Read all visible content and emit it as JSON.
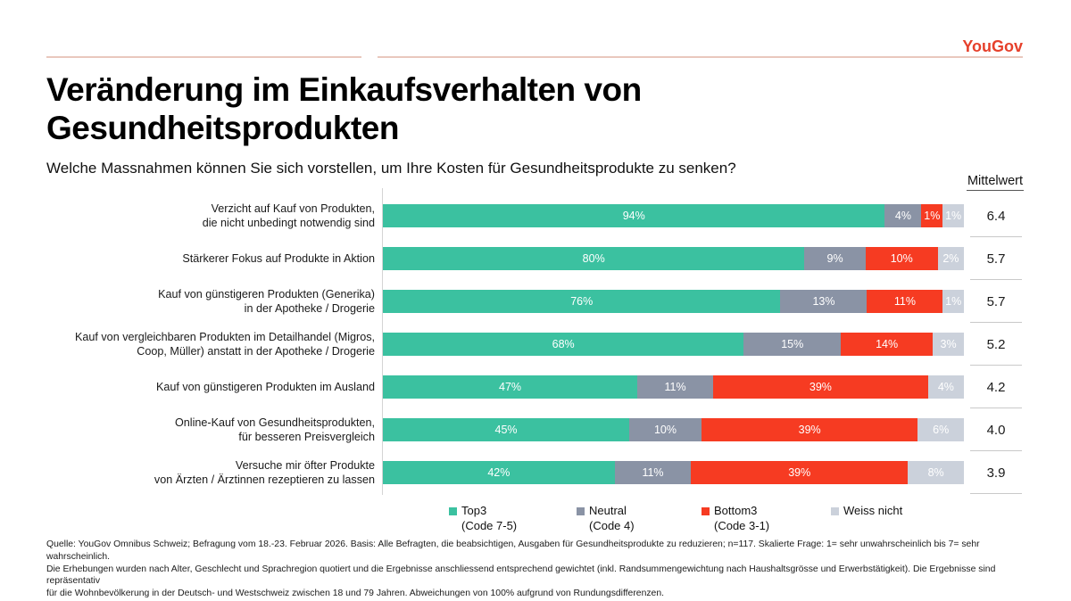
{
  "page": {
    "logo_text": "YouGov",
    "logo_color": "#E6402B",
    "accent_line_color": "#E9C8BD",
    "title": "Veränderung im Einkaufsverhalten von Gesundheitsprodukten",
    "subtitle": "Welche Massnahmen können Sie sich vorstellen, um Ihre Kosten für Gesundheitsprodukte zu senken?"
  },
  "chart_data": {
    "type": "bar",
    "orientation": "horizontal",
    "stacked": true,
    "value_suffix": "%",
    "x_range": [
      0,
      100
    ],
    "mean_header": "Mittelwert",
    "categories": [
      "Verzicht auf Kauf von Produkten,\ndie nicht unbedingt notwendig sind",
      "Stärkerer Fokus auf Produkte in Aktion",
      "Kauf von günstigeren Produkten (Generika)\nin der Apotheke / Drogerie",
      "Kauf von vergleichbaren Produkten im Detailhandel (Migros,\nCoop, Müller) anstatt in der Apotheke / Drogerie",
      "Kauf von günstigeren Produkten im Ausland",
      "Online-Kauf von Gesundheitsprodukten,\nfür besseren Preisvergleich",
      "Versuche mir öfter Produkte\nvon Ärzten / Ärztinnen rezeptieren zu lassen"
    ],
    "series": [
      {
        "name": "Top3 (Code 7-5)",
        "legend_label": "Top3",
        "legend_sublabel": "(Code 7-5)",
        "color": "#3BC1A0",
        "values": [
          94,
          80,
          76,
          68,
          47,
          45,
          42
        ]
      },
      {
        "name": "Neutral (Code 4)",
        "legend_label": "Neutral",
        "legend_sublabel": "(Code 4)",
        "color": "#8A93A5",
        "values": [
          4,
          9,
          13,
          15,
          11,
          10,
          11
        ]
      },
      {
        "name": "Bottom3 (Code 3-1)",
        "legend_label": "Bottom3",
        "legend_sublabel": "(Code 3-1)",
        "color": "#F63B22",
        "values": [
          1,
          10,
          11,
          14,
          39,
          39,
          39
        ]
      },
      {
        "name": "Weiss nicht",
        "legend_label": "Weiss nicht",
        "legend_sublabel": "",
        "color": "#CBD1DB",
        "values": [
          1,
          2,
          1,
          3,
          4,
          6,
          8
        ]
      }
    ],
    "means": [
      "6.4",
      "5.7",
      "5.7",
      "5.2",
      "4.2",
      "4.0",
      "3.9"
    ]
  },
  "footer": {
    "lines": [
      "Quelle: YouGov Omnibus Schweiz; Befragung vom 18.-23. Februar 2026. Basis: Alle Befragten, die beabsichtigen, Ausgaben für Gesundheitsprodukte zu reduzieren; n=117. Skalierte Frage: 1= sehr unwahrscheinlich bis 7= sehr wahrscheinlich.",
      "Die Erhebungen wurden nach Alter, Geschlecht und Sprachregion quotiert und die Ergebnisse anschliessend entsprechend gewichtet (inkl. Randsummengewichtung nach Haushaltsgrösse und Erwerbstätigkeit). Die Ergebnisse sind repräsentativ",
      "für die Wohnbevölkerung in der Deutsch- und Westschweiz zwischen 18 und 79 Jahren. Abweichungen von 100% aufgrund von Rundungsdifferenzen."
    ]
  }
}
